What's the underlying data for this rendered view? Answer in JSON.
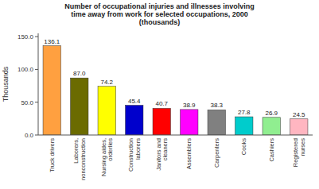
{
  "chart_data": {
    "type": "bar",
    "title": "Number of occupational injuries and illnesses involving\ntime away from work for selected occupations, 2000\n(thousands)",
    "ylabel": "Thousands",
    "categories": [
      "Truck drivers",
      "Laborers,\nnonconstruction",
      "Nursing aides,\norderlies",
      "Construction\nlaborers",
      "Janitors and\ncleaners",
      "Assemblers",
      "Carpenters",
      "Cooks",
      "Cashiers",
      "Registered\nnurses"
    ],
    "values": [
      136.1,
      87.0,
      74.2,
      45.4,
      40.7,
      38.9,
      38.3,
      27.8,
      26.9,
      24.5
    ],
    "value_labels": [
      "136.1",
      "87.0",
      "74.2",
      "45.4",
      "40.7",
      "38.9",
      "38.3",
      "27.8",
      "26.9",
      "24.5"
    ],
    "colors": [
      "#FFA040",
      "#6B6B00",
      "#FFFF00",
      "#0000CC",
      "#FF0000",
      "#FF00FF",
      "#808080",
      "#00CCCC",
      "#90EE90",
      "#FFB6C1"
    ],
    "ylim": [
      0,
      155.0
    ],
    "yticks": [
      {
        "value": 0.0,
        "label": "0.0"
      },
      {
        "value": 50.0,
        "label": "50.0"
      },
      {
        "value": 100.0,
        "label": "100.0"
      },
      {
        "value": 150.0,
        "label": "150.0"
      }
    ],
    "data_labels": true,
    "grid": false
  }
}
